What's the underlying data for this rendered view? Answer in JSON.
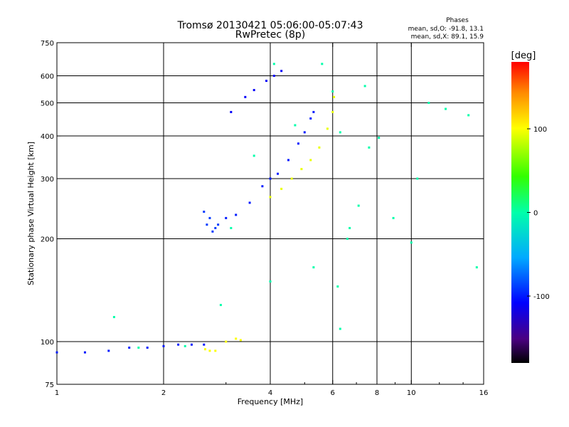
{
  "header": {
    "title_line1": "Tromsø 20130421 05:06:00-05:07:43",
    "title_line2": "RwPretec (8p)",
    "stats_title": "Phases",
    "stats_line_o": "mean, sd,O: -91.8, 13.1",
    "stats_line_x": "mean, sd,X:  89.1, 15.9"
  },
  "colorbar": {
    "label": "[deg]",
    "ticks": [
      "100",
      "0",
      "-100"
    ],
    "tick_values": [
      100,
      0,
      -100
    ],
    "range": [
      -180,
      180
    ]
  },
  "chart_data": {
    "type": "scatter",
    "xlabel": "Frequency [MHz]",
    "ylabel": "Stationary phase Virtual Height [km]",
    "x_scale": "log",
    "y_scale": "log",
    "xlim": [
      1,
      16
    ],
    "ylim": [
      75,
      750
    ],
    "x_ticks": [
      1,
      2,
      4,
      6,
      8,
      10,
      16
    ],
    "x_tick_labels": [
      "1",
      "2",
      "4",
      "6",
      "8",
      "10",
      "16"
    ],
    "y_ticks": [
      75,
      100,
      200,
      300,
      400,
      500,
      600,
      750
    ],
    "y_tick_labels": [
      "75",
      "100",
      "200",
      "300",
      "400",
      "500",
      "600",
      "750"
    ],
    "x_gridlines": [
      2,
      4,
      6,
      8,
      10
    ],
    "y_gridlines": [
      100,
      200,
      300,
      400,
      500,
      600
    ],
    "color_scale": "phase_deg",
    "traces": [
      {
        "points": [
          [
            1.0,
            93
          ],
          [
            1.2,
            93
          ],
          [
            1.4,
            94
          ],
          [
            1.6,
            96
          ],
          [
            1.8,
            96
          ],
          [
            2.0,
            97
          ],
          [
            2.2,
            98
          ],
          [
            2.4,
            98
          ],
          [
            2.6,
            98
          ]
        ],
        "phase": -100
      },
      {
        "points": [
          [
            2.6,
            240
          ],
          [
            2.65,
            220
          ],
          [
            2.7,
            230
          ],
          [
            2.75,
            210
          ],
          [
            2.8,
            215
          ],
          [
            2.85,
            220
          ]
        ],
        "phase": -90
      },
      {
        "points": [
          [
            3.0,
            230
          ],
          [
            3.2,
            235
          ],
          [
            3.5,
            255
          ],
          [
            3.8,
            285
          ],
          [
            4.0,
            300
          ],
          [
            4.2,
            310
          ],
          [
            4.5,
            340
          ],
          [
            4.8,
            380
          ],
          [
            5.0,
            410
          ],
          [
            5.2,
            450
          ],
          [
            5.3,
            470
          ]
        ],
        "phase": -100
      },
      {
        "points": [
          [
            3.1,
            470
          ],
          [
            3.4,
            520
          ],
          [
            3.6,
            545
          ],
          [
            3.9,
            580
          ],
          [
            4.1,
            600
          ],
          [
            4.3,
            620
          ]
        ],
        "phase": -110
      },
      {
        "points": [
          [
            2.62,
            95
          ],
          [
            2.7,
            94
          ],
          [
            2.8,
            94
          ],
          [
            3.0,
            100
          ],
          [
            3.2,
            102
          ],
          [
            3.3,
            101
          ]
        ],
        "phase": 100
      },
      {
        "points": [
          [
            4.0,
            265
          ],
          [
            4.3,
            280
          ],
          [
            4.6,
            300
          ],
          [
            4.9,
            320
          ],
          [
            5.2,
            340
          ],
          [
            5.5,
            370
          ],
          [
            5.8,
            420
          ],
          [
            6.0,
            470
          ],
          [
            6.05,
            520
          ]
        ],
        "phase": 95
      },
      {
        "points": [
          [
            1.45,
            118
          ],
          [
            1.7,
            96
          ],
          [
            2.3,
            97
          ],
          [
            2.9,
            128
          ],
          [
            3.1,
            215
          ],
          [
            3.6,
            350
          ],
          [
            4.0,
            150
          ],
          [
            4.7,
            430
          ],
          [
            5.3,
            165
          ],
          [
            5.6,
            650
          ],
          [
            6.0,
            540
          ],
          [
            6.2,
            145
          ],
          [
            6.3,
            410
          ],
          [
            6.6,
            200
          ],
          [
            6.7,
            215
          ],
          [
            7.1,
            250
          ],
          [
            7.4,
            560
          ],
          [
            7.6,
            370
          ],
          [
            8.1,
            395
          ],
          [
            8.9,
            230
          ],
          [
            10.0,
            195
          ],
          [
            10.4,
            300
          ],
          [
            11.2,
            500
          ],
          [
            12.5,
            480
          ],
          [
            14.5,
            460
          ],
          [
            15.3,
            165
          ],
          [
            6.3,
            109
          ],
          [
            4.1,
            650
          ]
        ],
        "phase": 0
      }
    ]
  }
}
